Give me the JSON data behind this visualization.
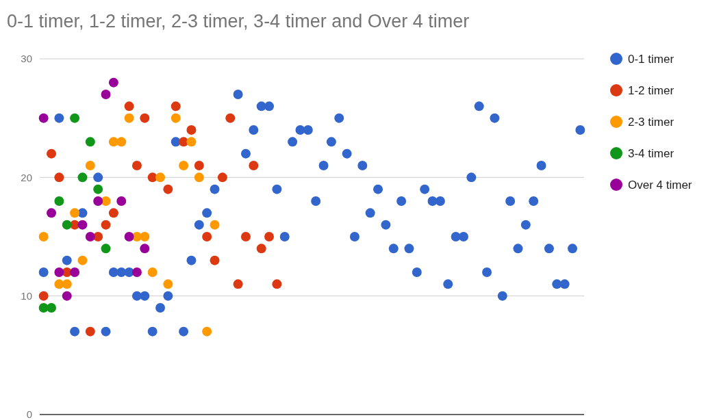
{
  "chart_data": {
    "type": "scatter",
    "title": "0-1 timer, 1-2 timer, 2-3 timer, 3-4 timer and Over 4 timer",
    "categories": [
      null,
      null,
      null,
      null,
      null,
      null,
      null,
      null,
      null,
      null,
      null,
      null,
      null,
      null,
      null,
      null,
      null,
      null,
      null,
      null,
      null,
      null,
      null,
      null,
      null,
      null,
      null,
      null,
      null,
      null,
      null,
      null,
      null,
      null,
      null,
      null,
      null,
      null,
      null,
      null,
      null,
      null,
      null,
      null,
      null,
      null,
      null,
      null,
      null,
      null,
      null,
      null,
      null,
      null,
      null,
      null,
      null,
      null,
      null,
      null,
      null,
      null,
      null,
      null,
      null,
      null,
      null,
      null,
      null,
      null
    ],
    "series": [
      {
        "name": "0-1 timer",
        "color": "#3366cc",
        "values": [
          12,
          null,
          25,
          13,
          7,
          17,
          null,
          20,
          7,
          12,
          12,
          12,
          10,
          10,
          7,
          9,
          10,
          23,
          7,
          13,
          16,
          17,
          19,
          null,
          null,
          27,
          22,
          24,
          26,
          26,
          19,
          15,
          23,
          24,
          24,
          18,
          21,
          23,
          25,
          22,
          15,
          21,
          17,
          19,
          16,
          14,
          18,
          14,
          12,
          19,
          18,
          18,
          11,
          15,
          15,
          20,
          26,
          12,
          25,
          10,
          18,
          14,
          16,
          18,
          21,
          14,
          11,
          11,
          14,
          24
        ]
      },
      {
        "name": "1-2 timer",
        "color": "#dc3912",
        "values": [
          10,
          22,
          20,
          12,
          16,
          null,
          7,
          15,
          16,
          17,
          null,
          26,
          21,
          25,
          20,
          null,
          19,
          26,
          23,
          24,
          21,
          15,
          13,
          20,
          25,
          11,
          15,
          21,
          14,
          15,
          11,
          null,
          null,
          null,
          null,
          null,
          null,
          null,
          null,
          null,
          null,
          null,
          null,
          null,
          null,
          null,
          null,
          null,
          null,
          null,
          null,
          null,
          null,
          null,
          null,
          null,
          null,
          null,
          null,
          null,
          null,
          null,
          null,
          null,
          null,
          null,
          null,
          null,
          null,
          null
        ]
      },
      {
        "name": "2-3 timer",
        "color": "#ff9900",
        "values": [
          15,
          null,
          11,
          11,
          17,
          13,
          21,
          null,
          18,
          23,
          23,
          25,
          15,
          15,
          12,
          20,
          11,
          25,
          21,
          23,
          20,
          7,
          16,
          null,
          null,
          null,
          null,
          null,
          null,
          null,
          null,
          null,
          null,
          null,
          null,
          null,
          null,
          null,
          null,
          null,
          null,
          null,
          null,
          null,
          null,
          null,
          null,
          null,
          null,
          null,
          null,
          null,
          null,
          null,
          null,
          null,
          null,
          null,
          null,
          null,
          null,
          null,
          null,
          null,
          null,
          null,
          null,
          null,
          null,
          null
        ]
      },
      {
        "name": "3-4 timer",
        "color": "#109618",
        "values": [
          9,
          9,
          18,
          16,
          25,
          20,
          23,
          19,
          14,
          null,
          null,
          null,
          null,
          null,
          null,
          null,
          null,
          null,
          null,
          null,
          null,
          null,
          null,
          null,
          null,
          null,
          null,
          null,
          null,
          null,
          null,
          null,
          null,
          null,
          null,
          null,
          null,
          null,
          null,
          null,
          null,
          null,
          null,
          null,
          null,
          null,
          null,
          null,
          null,
          null,
          null,
          null,
          null,
          null,
          null,
          null,
          null,
          null,
          null,
          null,
          null,
          null,
          null,
          null,
          null,
          null,
          null,
          null,
          null,
          null
        ]
      },
      {
        "name": "Over 4 timer",
        "color": "#990099",
        "values": [
          25,
          17,
          12,
          10,
          12,
          16,
          15,
          18,
          27,
          28,
          18,
          15,
          12,
          14,
          null,
          null,
          null,
          null,
          null,
          null,
          null,
          null,
          null,
          null,
          null,
          null,
          null,
          null,
          null,
          null,
          null,
          null,
          null,
          null,
          null,
          null,
          null,
          null,
          null,
          null,
          null,
          null,
          null,
          null,
          null,
          null,
          null,
          null,
          null,
          null,
          null,
          null,
          null,
          null,
          null,
          null,
          null,
          null,
          null,
          null,
          null,
          null,
          null,
          null,
          null,
          null,
          null,
          null,
          null,
          null
        ]
      }
    ],
    "ylim": [
      0,
      30
    ],
    "yticks": [
      0,
      10,
      20,
      30
    ],
    "grid": "y",
    "legend": "right",
    "marker": "circle"
  }
}
